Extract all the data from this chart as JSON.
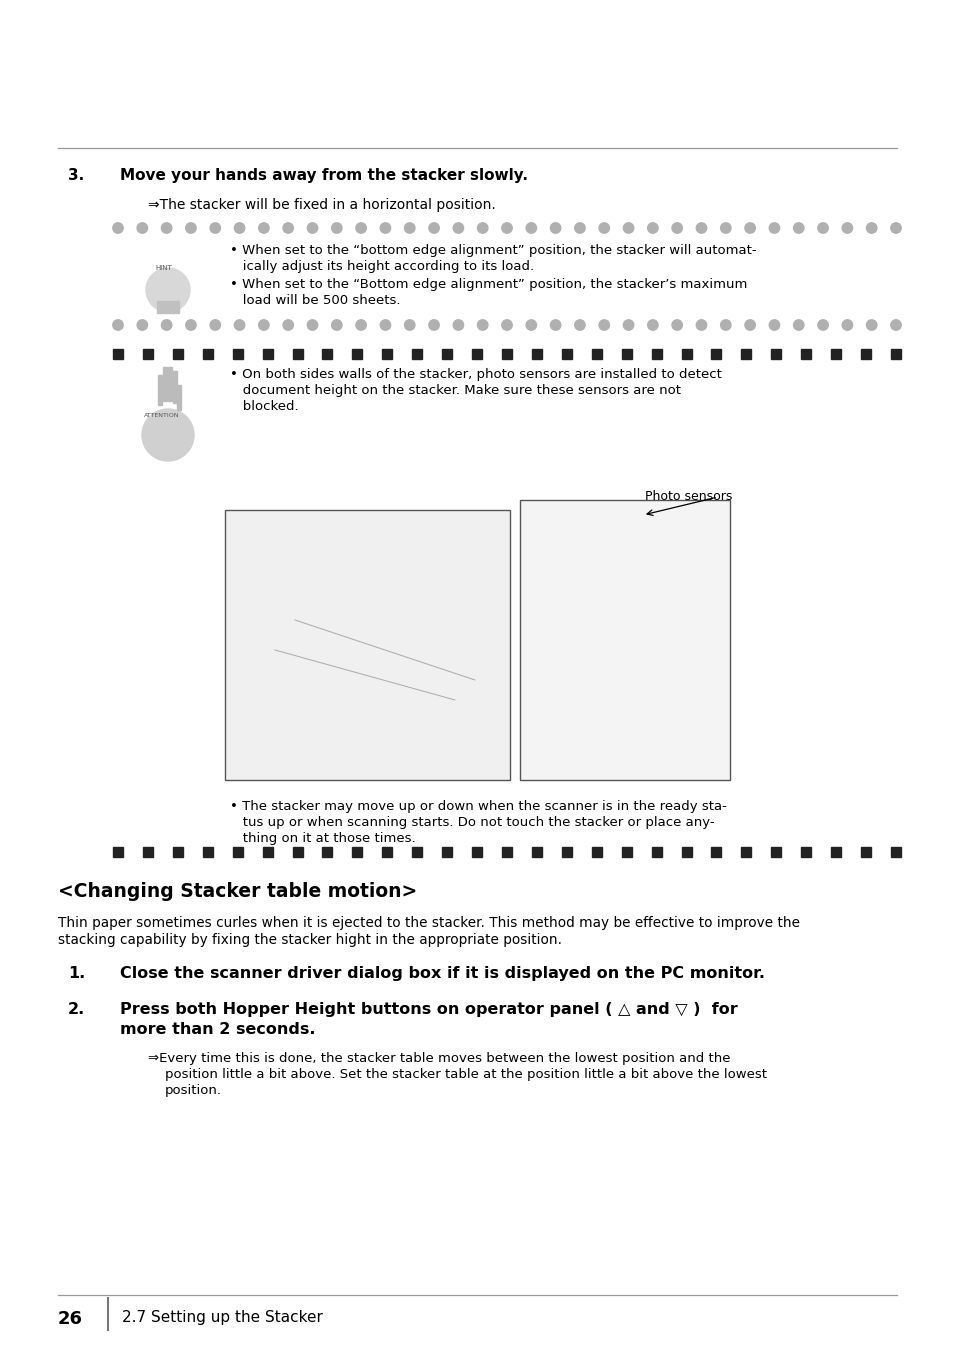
{
  "bg_color": "#ffffff",
  "step3_number": "3.",
  "step3_heading": "Move your hands away from the stacker slowly.",
  "step3_arrow": "⇒The stacker will be fixed in a horizontal position.",
  "hint_b1_l1": "• When set to the “bottom edge alignment” position, the stacker will automat-",
  "hint_b1_l2": "   ically adjust its height according to its load.",
  "hint_b2_l1": "• When set to the “Bottom edge alignment” position, the stacker’s maximum",
  "hint_b2_l2": "   load will be 500 sheets.",
  "att_b1_l1": "• On both sides walls of the stacker, photo sensors are installed to detect",
  "att_b1_l2": "   document height on the stacker. Make sure these sensors are not",
  "att_b1_l3": "   blocked.",
  "photo_label": "Photo sensors",
  "att_b2_l1": "• The stacker may move up or down when the scanner is in the ready sta-",
  "att_b2_l2": "   tus up or when scanning starts. Do not touch the stacker or place any-",
  "att_b2_l3": "   thing on it at those times.",
  "section_heading": "<Changing Stacker table motion>",
  "intro_l1": "Thin paper sometimes curles when it is ejected to the stacker. This method may be effective to improve the",
  "intro_l2": "stacking capability by fixing the stacker hight in the appropriate position.",
  "step1_number": "1.",
  "step1_heading": "Close the scanner driver dialog box if it is displayed on the PC monitor.",
  "step2_number": "2.",
  "step2_h_l1": "Press both Hopper Height buttons on operator panel ( △ and ▽ )  for",
  "step2_h_l2": "more than 2 seconds.",
  "step2_a_l1": "⇒Every time this is done, the stacker table moves between the lowest position and the",
  "step2_a_l2": "   position little a bit above. Set the stacker table at the position little a bit above the lowest",
  "step2_a_l3": "   position.",
  "footer_page": "26",
  "footer_section": "2.7 Setting up the Stacker",
  "gray_dot_color": "#b0b0b0",
  "black_sq_color": "#222222",
  "line_color": "#999999",
  "hint_icon_color": "#cccccc",
  "att_icon_color": "#cccccc"
}
